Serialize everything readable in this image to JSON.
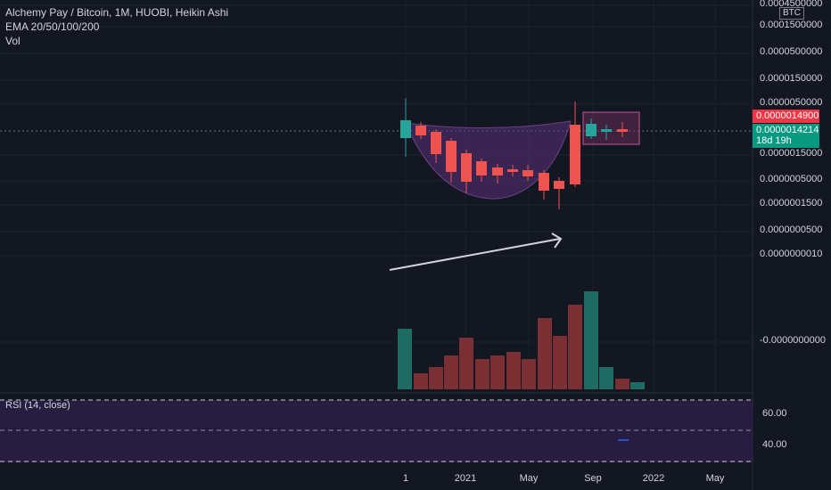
{
  "legend": {
    "title": "Alchemy Pay / Bitcoin, 1M, HUOBI, Heikin Ashi",
    "ema": "EMA 20/50/100/200",
    "vol": "Vol"
  },
  "rsi_label": "RSI (14, close)",
  "currency_badge": "BTC",
  "price_tags": {
    "high_line": "0.0000014900",
    "last_price": "0.0000014214",
    "countdown": "18d 19h"
  },
  "colors": {
    "background": "#131722",
    "up": "#26a69a",
    "down": "#ef5350",
    "cup_fill": "#7b3f8f",
    "rsi_band": "#2a1f45",
    "price_tag_red": "#f23645",
    "price_tag_green": "#089981",
    "arrow": "#d1d4dc"
  },
  "chart_data": {
    "type": "candlestick",
    "title": "Alchemy Pay / Bitcoin, 1M, HUOBI, Heikin Ashi",
    "y_axis_labels": [
      "0.0004500000",
      "0.0001500000",
      "0.0000500000",
      "0.0000150000",
      "0.0000050000",
      "0.0000015000",
      "0.0000005000",
      "0.0000001500",
      "0.0000000500",
      "0.0000000010",
      "-0.0000000000"
    ],
    "y_scale": "log",
    "x_tick_labels": [
      "1",
      "2021",
      "May",
      "Sep",
      "2022",
      "May"
    ],
    "candles": [
      {
        "color": "up"
      },
      {
        "color": "down"
      },
      {
        "color": "down"
      },
      {
        "color": "down"
      },
      {
        "color": "down"
      },
      {
        "color": "down"
      },
      {
        "color": "down"
      },
      {
        "color": "down"
      },
      {
        "color": "down"
      },
      {
        "color": "down"
      },
      {
        "color": "down"
      },
      {
        "color": "down"
      },
      {
        "color": "up"
      },
      {
        "color": "up"
      },
      {
        "color": "down"
      },
      {
        "color": "up"
      }
    ],
    "volume": [
      {
        "color": "up",
        "value": 68
      },
      {
        "color": "down",
        "value": 18
      },
      {
        "color": "down",
        "value": 25
      },
      {
        "color": "down",
        "value": 38
      },
      {
        "color": "down",
        "value": 58
      },
      {
        "color": "down",
        "value": 34
      },
      {
        "color": "down",
        "value": 38
      },
      {
        "color": "down",
        "value": 42
      },
      {
        "color": "down",
        "value": 34
      },
      {
        "color": "down",
        "value": 80
      },
      {
        "color": "down",
        "value": 60
      },
      {
        "color": "down",
        "value": 95
      },
      {
        "color": "up",
        "value": 110
      },
      {
        "color": "up",
        "value": 25
      },
      {
        "color": "down",
        "value": 12
      },
      {
        "color": "up",
        "value": 8
      }
    ],
    "rsi": {
      "levels": [
        60.0,
        40.0
      ],
      "level_labels": [
        "60.00",
        "40.00"
      ]
    },
    "annotations": [
      "cup-and-handle-shape",
      "handle-rectangle",
      "trend-arrow"
    ]
  }
}
